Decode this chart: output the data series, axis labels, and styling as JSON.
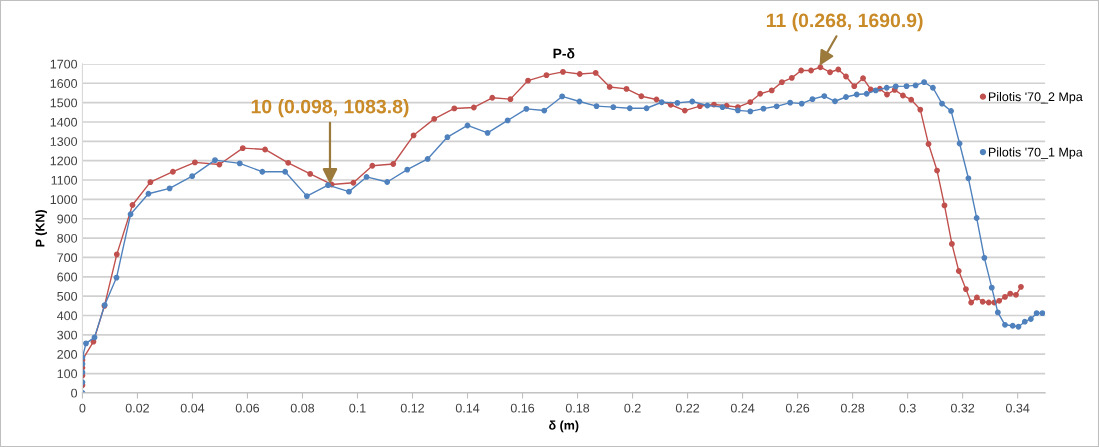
{
  "chart_data": {
    "type": "line",
    "title": "P-δ",
    "xlabel": "δ (m)",
    "ylabel": "P (KN)",
    "xlim": [
      0,
      0.35
    ],
    "xticks": [
      0,
      0.02,
      0.04,
      0.06,
      0.08,
      0.1,
      0.12,
      0.14,
      0.16,
      0.18,
      0.2,
      0.22,
      0.24,
      0.26,
      0.28,
      0.3,
      0.32,
      0.34
    ],
    "ylim": [
      0,
      1700
    ],
    "yticks": [
      0,
      100,
      200,
      300,
      400,
      500,
      600,
      700,
      800,
      900,
      1000,
      1100,
      1200,
      1300,
      1400,
      1500,
      1600,
      1700
    ],
    "grid": "y",
    "legend": "right",
    "marker": "circle",
    "line_style": "solid",
    "series": [
      {
        "name": "Pilotis '70_2 Mpa",
        "color": "#c0504d",
        "x": [
          0,
          0,
          0,
          0,
          0.004,
          0.008,
          0.0125,
          0.0182,
          0.0247,
          0.0329,
          0.0409,
          0.0498,
          0.0583,
          0.0664,
          0.0748,
          0.0828,
          0.0906,
          0.0985,
          0.1054,
          0.113,
          0.1204,
          0.1279,
          0.1352,
          0.1423,
          0.149,
          0.1556,
          0.162,
          0.1687,
          0.1747,
          0.1808,
          0.1866,
          0.1917,
          0.1978,
          0.2032,
          0.2087,
          0.2139,
          0.219,
          0.2245,
          0.2296,
          0.2342,
          0.2383,
          0.2428,
          0.2464,
          0.2506,
          0.2543,
          0.2579,
          0.2613,
          0.2649,
          0.2683,
          0.2718,
          0.2748,
          0.2776,
          0.2806,
          0.2838,
          0.2866,
          0.2899,
          0.2925,
          0.2953,
          0.2983,
          0.3013,
          0.3046,
          0.3076,
          0.3107,
          0.3134,
          0.3161,
          0.3186,
          0.3212,
          0.3231,
          0.3252,
          0.3273,
          0.3295,
          0.3315,
          0.3333,
          0.3354,
          0.3373,
          0.3394,
          0.3412
        ],
        "values": [
          40,
          90,
          130,
          170,
          265,
          450,
          716,
          971,
          1089,
          1143,
          1191,
          1180,
          1265,
          1258,
          1189,
          1132,
          1077,
          1086,
          1174,
          1183,
          1331,
          1416,
          1470,
          1475,
          1525,
          1518,
          1614,
          1642,
          1659,
          1648,
          1654,
          1581,
          1571,
          1533,
          1516,
          1489,
          1459,
          1482,
          1490,
          1484,
          1477,
          1503,
          1546,
          1563,
          1606,
          1628,
          1666,
          1666,
          1683,
          1657,
          1671,
          1635,
          1585,
          1626,
          1568,
          1572,
          1542,
          1566,
          1537,
          1515,
          1464,
          1286,
          1149,
          969,
          770,
          630,
          536,
          467,
          493,
          471,
          467,
          467,
          476,
          496,
          513,
          507,
          548
        ]
      },
      {
        "name": "Pilotis '70_1 Mpa",
        "color": "#4f81bd",
        "x": [
          0,
          0,
          0,
          0,
          0,
          0.0013,
          0.0044,
          0.0081,
          0.0124,
          0.0175,
          0.024,
          0.0317,
          0.0399,
          0.0482,
          0.0572,
          0.0654,
          0.0737,
          0.0816,
          0.0893,
          0.0969,
          0.1033,
          0.1108,
          0.1181,
          0.1255,
          0.1327,
          0.14,
          0.1473,
          0.1546,
          0.1614,
          0.1679,
          0.1744,
          0.1807,
          0.1869,
          0.193,
          0.199,
          0.2051,
          0.2106,
          0.2163,
          0.2217,
          0.2272,
          0.2327,
          0.2383,
          0.2428,
          0.2476,
          0.2524,
          0.2573,
          0.2615,
          0.2654,
          0.2697,
          0.2736,
          0.2776,
          0.2815,
          0.2851,
          0.2884,
          0.2924,
          0.2957,
          0.2996,
          0.3029,
          0.306,
          0.3092,
          0.3125,
          0.3158,
          0.3189,
          0.3221,
          0.3251,
          0.3279,
          0.3306,
          0.3328,
          0.3354,
          0.3382,
          0.3403,
          0.3426,
          0.3448,
          0.3469,
          0.349
        ],
        "values": [
          0,
          55,
          107,
          150,
          184,
          256,
          287,
          454,
          596,
          923,
          1029,
          1057,
          1120,
          1203,
          1186,
          1143,
          1143,
          1017,
          1074,
          1040,
          1116,
          1090,
          1154,
          1209,
          1322,
          1382,
          1344,
          1408,
          1468,
          1459,
          1532,
          1506,
          1482,
          1477,
          1471,
          1471,
          1502,
          1499,
          1506,
          1485,
          1477,
          1460,
          1455,
          1469,
          1481,
          1500,
          1495,
          1518,
          1534,
          1507,
          1529,
          1542,
          1546,
          1563,
          1577,
          1584,
          1585,
          1589,
          1606,
          1577,
          1495,
          1457,
          1289,
          1109,
          904,
          698,
          544,
          416,
          352,
          347,
          342,
          368,
          382,
          412,
          412
        ]
      }
    ],
    "annotations": [
      {
        "text": "10 (0.098, 1083.8)",
        "x": 0.09,
        "y": 1080
      },
      {
        "text": "11 (0.268, 1690.9)",
        "x": 0.268,
        "y": 1690
      }
    ]
  }
}
